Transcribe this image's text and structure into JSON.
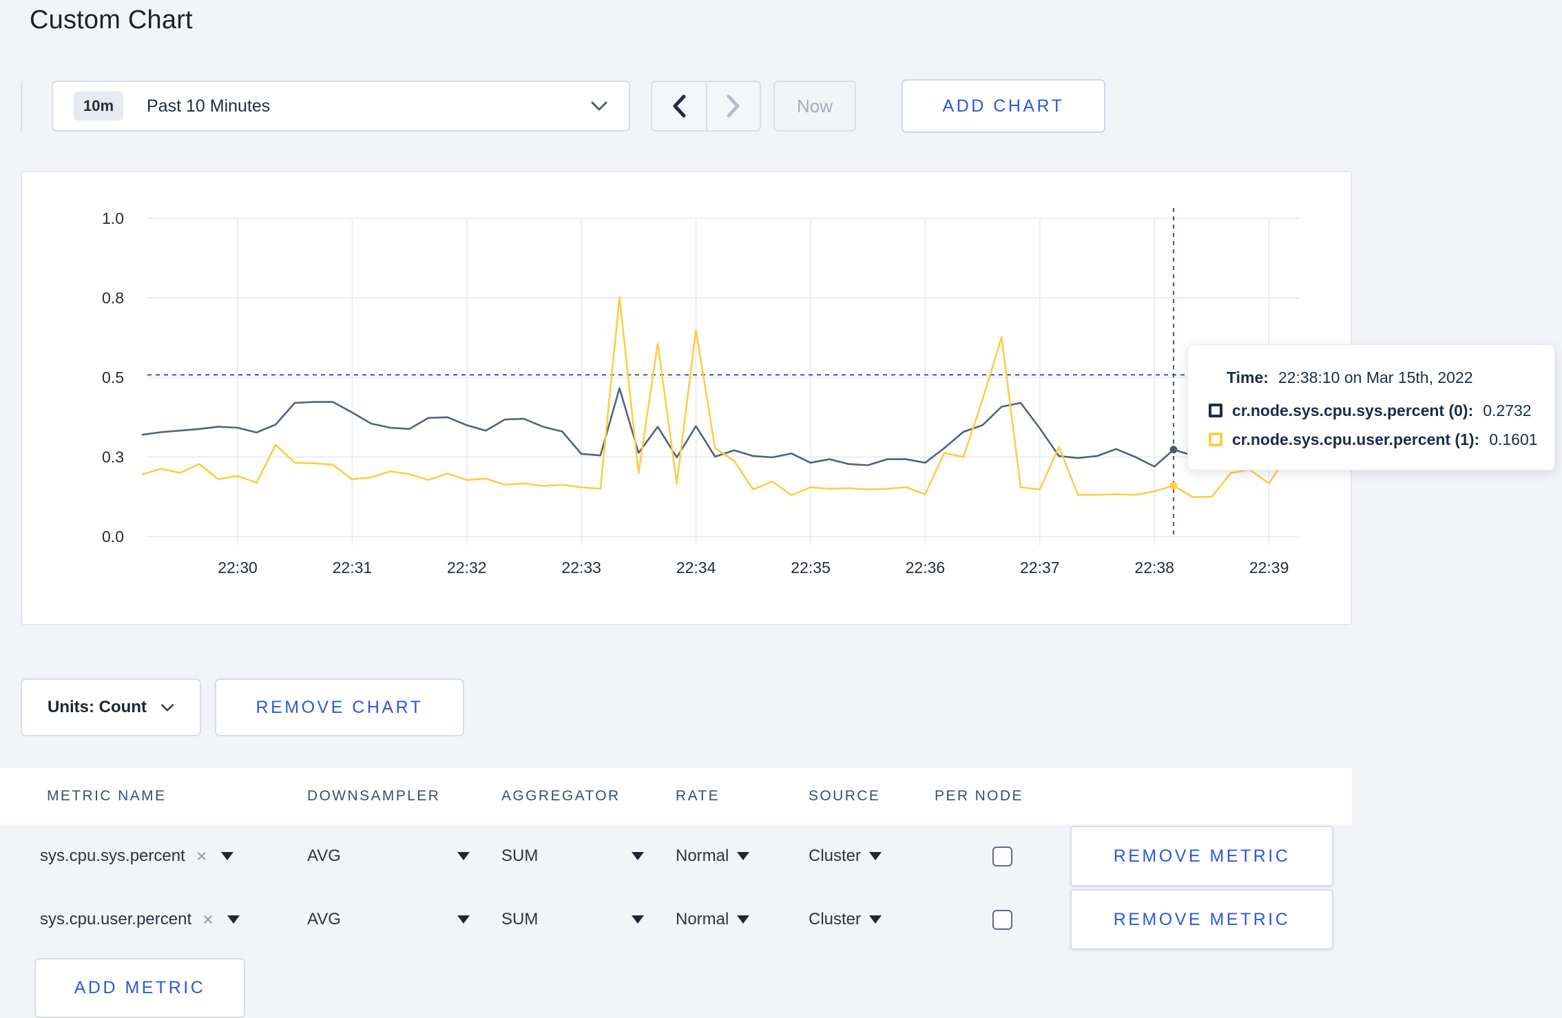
{
  "page": {
    "title": "Custom Chart",
    "background": "#f3f4f8",
    "accent_blue": "#2b59d8"
  },
  "toolbar": {
    "time_range": {
      "badge": "10m",
      "label": "Past 10 Minutes"
    },
    "now_label": "Now",
    "add_chart_label": "ADD CHART"
  },
  "chart_data": {
    "type": "line",
    "x_axis": {
      "tick_labels": [
        "22:30",
        "22:31",
        "22:32",
        "22:33",
        "22:34",
        "22:35",
        "22:36",
        "22:37",
        "22:38",
        "22:39"
      ],
      "start_time": "22:29:10",
      "step_seconds": 10
    },
    "y_axis": {
      "tick_labels": [
        "0.0",
        "0.3",
        "0.5",
        "0.8",
        "1.0"
      ],
      "tick_values": [
        0,
        0.25,
        0.5,
        0.75,
        1.0
      ],
      "range": [
        0,
        1
      ],
      "grid": true
    },
    "legend_position": "tooltip-only",
    "series": [
      {
        "name": "cr.node.sys.cpu.sys.percent",
        "color": "#526180",
        "values": [
          0.32,
          0.328,
          0.333,
          0.338,
          0.345,
          0.342,
          0.327,
          0.352,
          0.42,
          0.423,
          0.423,
          0.39,
          0.355,
          0.342,
          0.338,
          0.373,
          0.375,
          0.35,
          0.333,
          0.368,
          0.37,
          0.345,
          0.33,
          0.26,
          0.255,
          0.466,
          0.263,
          0.345,
          0.249,
          0.347,
          0.251,
          0.271,
          0.253,
          0.249,
          0.261,
          0.232,
          0.243,
          0.228,
          0.224,
          0.243,
          0.243,
          0.232,
          0.278,
          0.329,
          0.35,
          0.408,
          0.42,
          0.34,
          0.253,
          0.247,
          0.253,
          0.275,
          0.25,
          0.22,
          0.2732,
          0.255,
          0.27,
          0.3,
          0.31,
          0.295,
          0.3
        ]
      },
      {
        "name": "cr.node.sys.cpu.user.percent",
        "color": "#ffcd45",
        "values": [
          0.195,
          0.213,
          0.2,
          0.228,
          0.18,
          0.191,
          0.169,
          0.289,
          0.232,
          0.23,
          0.226,
          0.18,
          0.186,
          0.205,
          0.196,
          0.178,
          0.198,
          0.178,
          0.182,
          0.163,
          0.167,
          0.159,
          0.163,
          0.155,
          0.15,
          0.752,
          0.199,
          0.607,
          0.166,
          0.649,
          0.278,
          0.238,
          0.148,
          0.173,
          0.13,
          0.155,
          0.15,
          0.152,
          0.148,
          0.15,
          0.155,
          0.133,
          0.263,
          0.25,
          0.43,
          0.627,
          0.155,
          0.148,
          0.282,
          0.131,
          0.131,
          0.133,
          0.131,
          0.142,
          0.1601,
          0.124,
          0.125,
          0.2,
          0.21,
          0.167,
          0.26
        ]
      }
    ],
    "crosshair": {
      "index": 54,
      "time": "22:38:10",
      "hover_value": 0.508
    }
  },
  "tooltip": {
    "time_label": "Time:",
    "time_value": "22:38:10 on Mar 15th, 2022",
    "rows": [
      {
        "label": "cr.node.sys.cpu.sys.percent (0):",
        "value": "0.2732",
        "color": "#1b2b4e"
      },
      {
        "label": "cr.node.sys.cpu.user.percent (1):",
        "value": "0.1601",
        "color": "#ffcd45"
      }
    ]
  },
  "chart_controls": {
    "units_label": "Units: Count",
    "remove_chart_label": "REMOVE CHART"
  },
  "metrics_table": {
    "headers": [
      "METRIC NAME",
      "DOWNSAMPLER",
      "AGGREGATOR",
      "RATE",
      "SOURCE",
      "PER NODE"
    ],
    "rows": [
      {
        "metric": "sys.cpu.sys.percent",
        "downsampler": "AVG",
        "aggregator": "SUM",
        "rate": "Normal",
        "source": "Cluster",
        "per_node_checked": false,
        "remove_label": "REMOVE METRIC"
      },
      {
        "metric": "sys.cpu.user.percent",
        "downsampler": "AVG",
        "aggregator": "SUM",
        "rate": "Normal",
        "source": "Cluster",
        "per_node_checked": false,
        "remove_label": "REMOVE METRIC"
      }
    ],
    "add_metric_label": "ADD METRIC"
  }
}
